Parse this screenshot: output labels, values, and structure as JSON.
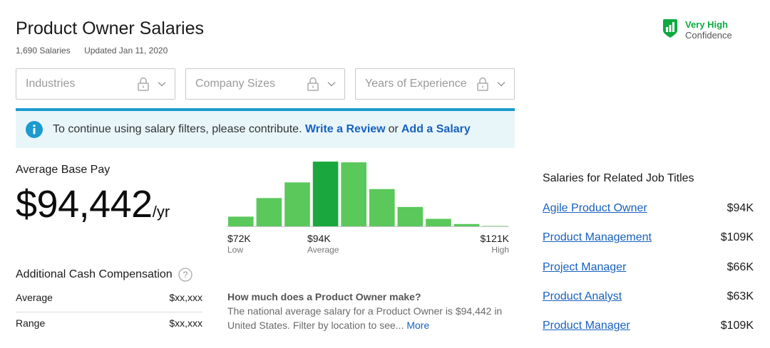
{
  "header": {
    "title": "Product Owner Salaries",
    "salary_count": "1,690 Salaries",
    "updated": "Updated Jan 11, 2020"
  },
  "confidence": {
    "level": "Very High",
    "label": "Confidence",
    "icon": "bar-chart-shield-icon",
    "color": "#0caa41"
  },
  "filters": [
    {
      "label": "Industries",
      "locked": true
    },
    {
      "label": "Company Sizes",
      "locked": true
    },
    {
      "label": "Years of Experience",
      "locked": true
    }
  ],
  "notice": {
    "text": "To continue using salary filters, please contribute.",
    "link_review": "Write a Review",
    "or": "or",
    "link_salary": "Add a Salary",
    "accent_color": "#1d9bd0"
  },
  "base_pay": {
    "label": "Average Base Pay",
    "value": "$94,442",
    "unit": "/yr"
  },
  "chart_data": {
    "type": "bar",
    "values": [
      14,
      39,
      60,
      88,
      87,
      51,
      27,
      11,
      4,
      1
    ],
    "highlight_index": 3,
    "bar_color": "#5ac85a",
    "highlight_color": "#1aa83e",
    "low": {
      "value": "$72K",
      "label": "Low"
    },
    "average": {
      "value": "$94K",
      "label": "Average"
    },
    "high": {
      "value": "$121K",
      "label": "High"
    }
  },
  "additional_cash": {
    "title": "Additional Cash Compensation",
    "rows": [
      {
        "label": "Average",
        "value": "$xx,xxx"
      },
      {
        "label": "Range",
        "value": "$xx,xxx"
      }
    ]
  },
  "faq": {
    "question": "How much does a Product Owner make?",
    "answer": "The national average salary for a Product Owner is $94,442 in United States. Filter by location to see...",
    "more": "More"
  },
  "related": {
    "title": "Salaries for Related Job Titles",
    "items": [
      {
        "title": "Agile Product Owner",
        "pay": "$94K"
      },
      {
        "title": "Product Management",
        "pay": "$109K"
      },
      {
        "title": "Project Manager",
        "pay": "$66K"
      },
      {
        "title": "Product Analyst",
        "pay": "$63K"
      },
      {
        "title": "Product Manager",
        "pay": "$109K"
      }
    ]
  }
}
